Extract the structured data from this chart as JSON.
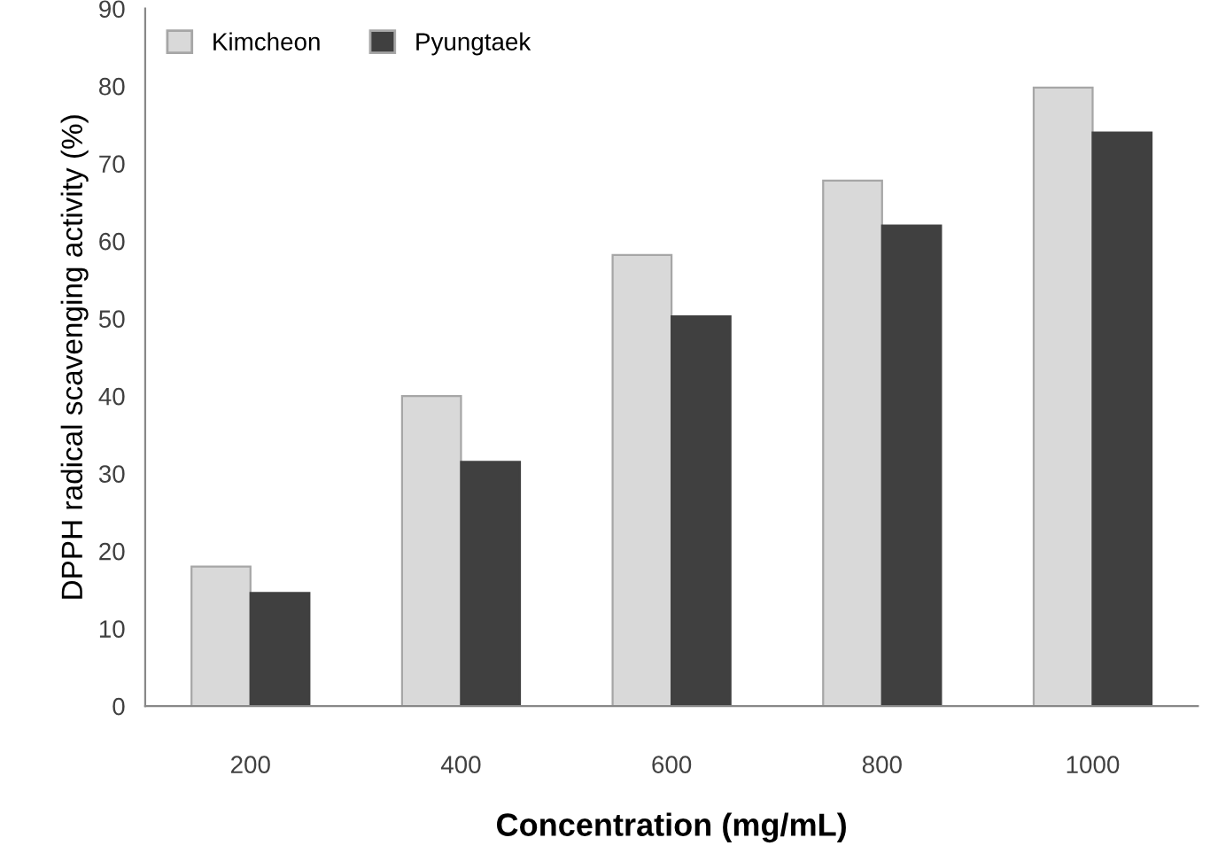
{
  "chart_data": {
    "type": "bar",
    "xlabel": "Concentration (mg/mL)",
    "ylabel": "DPPH radical scavenging activity (%)",
    "categories": [
      "200",
      "400",
      "600",
      "800",
      "1000"
    ],
    "series": [
      {
        "name": "Kimcheon",
        "color": "#d9d9d9",
        "values": [
          18,
          40,
          58.2,
          67.8,
          79.8
        ]
      },
      {
        "name": "Pyungtaek",
        "color": "#404040",
        "values": [
          14.6,
          31.5,
          50.3,
          62,
          74
        ]
      }
    ],
    "ylim": [
      0,
      90
    ],
    "yticks": [
      0,
      10,
      20,
      30,
      40,
      50,
      60,
      70,
      80,
      90
    ],
    "grid": false,
    "legend": "top left"
  }
}
